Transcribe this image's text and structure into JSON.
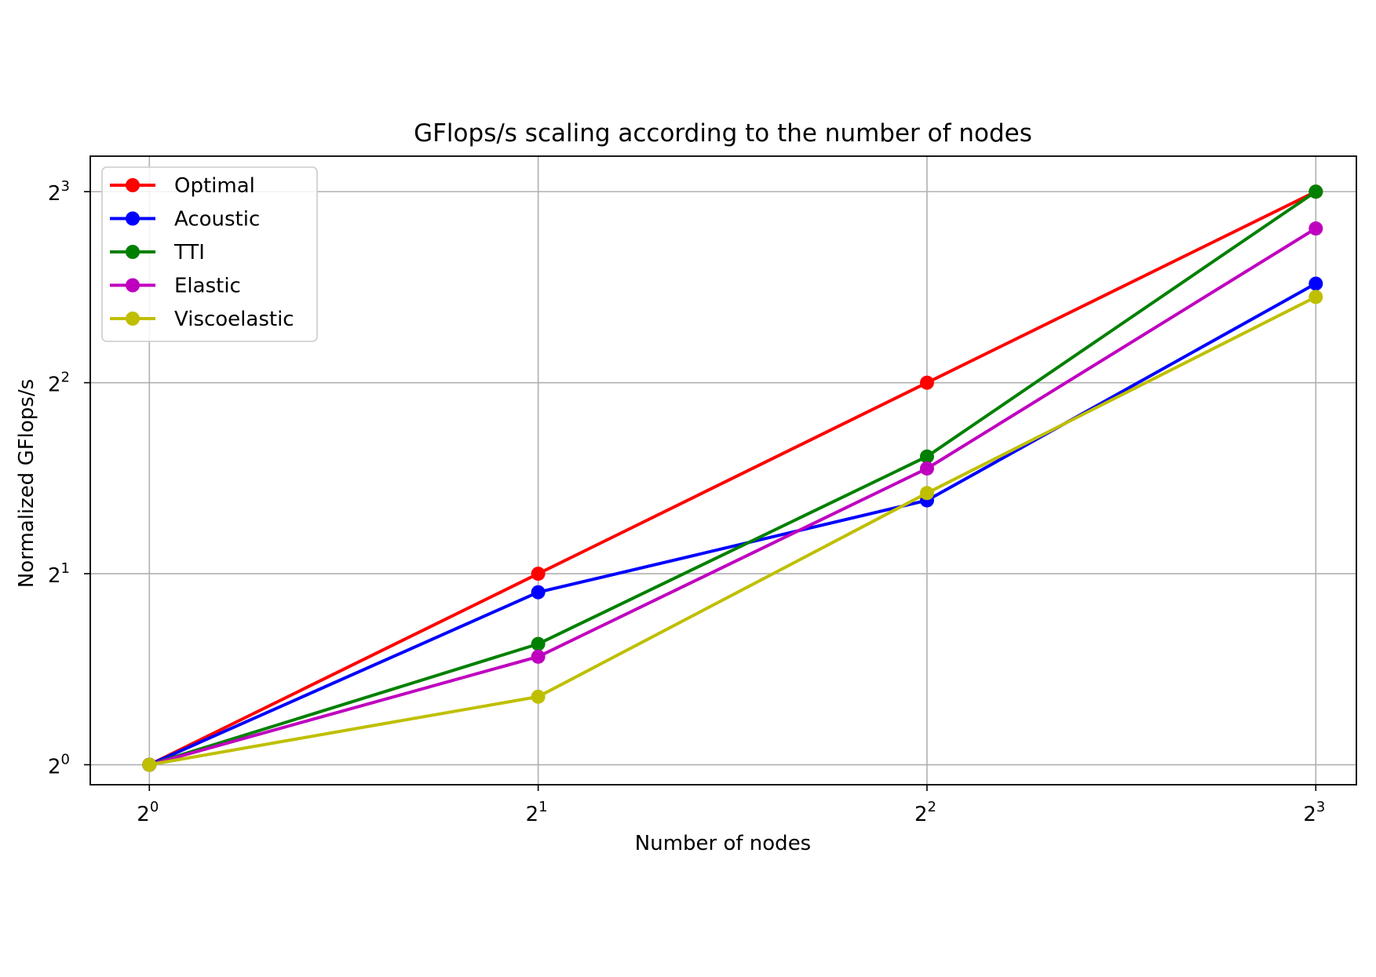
{
  "chart_data": {
    "type": "line",
    "title": "GFlops/s scaling according to the number of nodes",
    "xlabel": "Number of nodes",
    "ylabel": "Normalized GFlops/s",
    "x_scale": "log2",
    "y_scale": "log2",
    "x": [
      1,
      2,
      4,
      8
    ],
    "xlim": [
      0.9,
      8.6
    ],
    "ylim": [
      0.93,
      9.1
    ],
    "xticks": [
      {
        "value": 1,
        "base": "2",
        "exp": "0"
      },
      {
        "value": 2,
        "base": "2",
        "exp": "1"
      },
      {
        "value": 4,
        "base": "2",
        "exp": "2"
      },
      {
        "value": 8,
        "base": "2",
        "exp": "3"
      }
    ],
    "yticks": [
      {
        "value": 1,
        "base": "2",
        "exp": "0"
      },
      {
        "value": 2,
        "base": "2",
        "exp": "1"
      },
      {
        "value": 4,
        "base": "2",
        "exp": "2"
      },
      {
        "value": 8,
        "base": "2",
        "exp": "3"
      }
    ],
    "grid": true,
    "legend_position": "upper-left",
    "series": [
      {
        "name": "Optimal",
        "color": "#ff0000",
        "values": [
          1.0,
          2.0,
          4.0,
          8.0
        ]
      },
      {
        "name": "Acoustic",
        "color": "#0000ff",
        "values": [
          1.0,
          1.87,
          2.61,
          5.73
        ]
      },
      {
        "name": "TTI",
        "color": "#008000",
        "values": [
          1.0,
          1.55,
          3.06,
          8.0
        ]
      },
      {
        "name": "Elastic",
        "color": "#bf00bf",
        "values": [
          1.0,
          1.48,
          2.93,
          7.0
        ]
      },
      {
        "name": "Viscoelastic",
        "color": "#bfbf00",
        "values": [
          1.0,
          1.28,
          2.68,
          5.46
        ]
      }
    ]
  }
}
